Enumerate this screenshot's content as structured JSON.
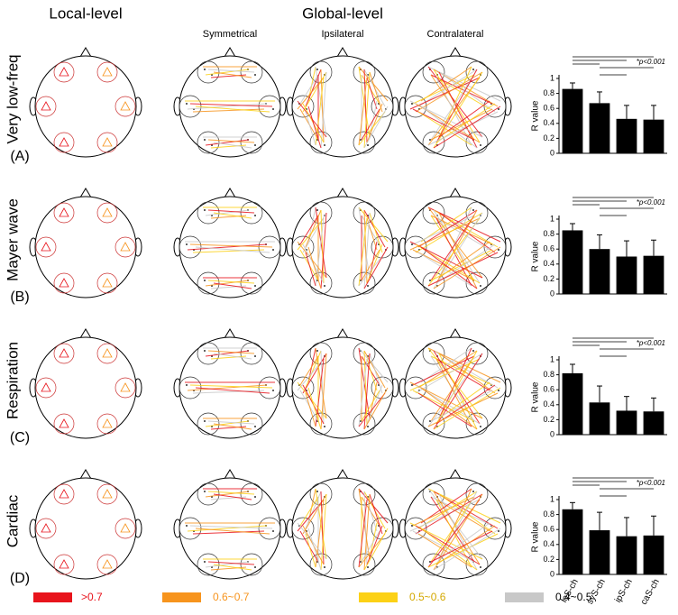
{
  "header": {
    "local": "Local-level",
    "global": "Global-level",
    "columns": [
      "Symmetrical",
      "Ipsilateral",
      "Contralateral"
    ]
  },
  "rows": [
    {
      "label": "Very low-freq",
      "panel": "(A)"
    },
    {
      "label": "Mayer wave",
      "panel": "(B)"
    },
    {
      "label": "Respiration",
      "panel": "(C)"
    },
    {
      "label": "Cardiac",
      "panel": "(D)"
    }
  ],
  "legend": [
    {
      "label": ">0.7",
      "color": "#e8141c"
    },
    {
      "label": "0.6~0.7",
      "color": "#f7941d"
    },
    {
      "label": "0.5~0.6",
      "color": "#fcd116"
    },
    {
      "label": "0.4~0.5",
      "color": "#c8c8c8"
    }
  ],
  "chart_data": [
    {
      "type": "bar",
      "y_label": "R value",
      "annotation": "*p<0.001",
      "categories": [
        null,
        null,
        null,
        null
      ],
      "values": [
        0.86,
        0.67,
        0.46,
        0.45
      ],
      "errors": [
        0.08,
        0.15,
        0.18,
        0.19
      ],
      "color": "#000000",
      "ylim": [
        0,
        1
      ],
      "yticks": [
        0,
        0.2,
        0.4,
        0.6,
        0.8,
        1
      ]
    },
    {
      "type": "bar",
      "y_label": "R value",
      "annotation": "*p<0.001",
      "categories": [
        null,
        null,
        null,
        null
      ],
      "values": [
        0.85,
        0.6,
        0.5,
        0.51
      ],
      "errors": [
        0.09,
        0.19,
        0.21,
        0.21
      ],
      "color": "#000000",
      "ylim": [
        0,
        1
      ],
      "yticks": [
        0,
        0.2,
        0.4,
        0.6,
        0.8,
        1
      ]
    },
    {
      "type": "bar",
      "y_label": "R value",
      "annotation": "*p<0.001",
      "categories": [
        null,
        null,
        null,
        null
      ],
      "values": [
        0.82,
        0.43,
        0.32,
        0.31
      ],
      "errors": [
        0.12,
        0.22,
        0.19,
        0.18
      ],
      "color": "#000000",
      "ylim": [
        0,
        1
      ],
      "yticks": [
        0,
        0.2,
        0.4,
        0.6,
        0.8,
        1
      ]
    },
    {
      "type": "bar",
      "y_label": "R value",
      "annotation": "*p<0.001",
      "categories": [
        "loS-ch",
        "syS-ch",
        "ipS-ch",
        "caS-ch"
      ],
      "values": [
        0.87,
        0.59,
        0.51,
        0.52
      ],
      "errors": [
        0.09,
        0.24,
        0.25,
        0.26
      ],
      "color": "#000000",
      "ylim": [
        0,
        1
      ],
      "yticks": [
        0,
        0.2,
        0.4,
        0.6,
        0.8,
        1
      ]
    }
  ]
}
